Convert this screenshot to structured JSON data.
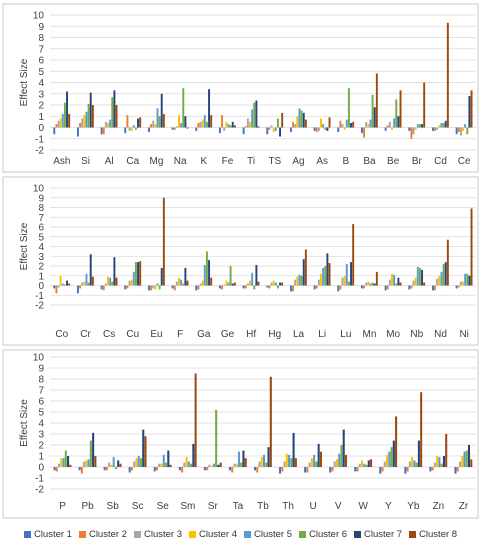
{
  "colors": [
    "#4472C4",
    "#ED7D31",
    "#A5A5A5",
    "#FFC000",
    "#5B9BD5",
    "#70AD47",
    "#264478",
    "#9E480E"
  ],
  "series_names": [
    "Cluster 1",
    "Cluster 2",
    "Cluster 3",
    "Cluster 4",
    "Cluster 5",
    "Cluster 6",
    "Cluster 7",
    "Cluster 8"
  ],
  "chart_data": [
    {
      "type": "bar",
      "ylabel": "Effect Size",
      "ylim": [
        -2,
        10
      ],
      "yticks": [
        -2,
        -1,
        0,
        1,
        2,
        3,
        4,
        5,
        6,
        7,
        8,
        9,
        10
      ],
      "grid": true,
      "legend": "bottom",
      "categories": [
        "Ash",
        "Si",
        "Al",
        "Ca",
        "Mg",
        "Na",
        "K",
        "Fe",
        "Ti",
        "TS",
        "Ag",
        "As",
        "B",
        "Ba",
        "Be",
        "Br",
        "Cd",
        "Ce"
      ],
      "series": [
        {
          "name": "Cluster 1",
          "values": [
            -0.6,
            -0.8,
            -0.6,
            -0.5,
            -0.4,
            -0.2,
            -0.3,
            -0.5,
            -0.6,
            -0.6,
            -0.4,
            -0.3,
            -0.4,
            -0.5,
            -0.3,
            -0.3,
            -0.3,
            -0.6
          ]
        },
        {
          "name": "Cluster 2",
          "values": [
            0.3,
            0.4,
            -0.6,
            1.1,
            0.3,
            -0.2,
            0.4,
            1.1,
            0.1,
            -0.2,
            0.5,
            -0.4,
            0.6,
            -0.9,
            0.2,
            -1.0,
            -0.3,
            -0.4
          ]
        },
        {
          "name": "Cluster 3",
          "values": [
            0.6,
            0.8,
            0.5,
            -0.3,
            0.6,
            0.1,
            0.5,
            -0.3,
            0.8,
            0.2,
            0.3,
            -0.3,
            0.3,
            0.5,
            0.5,
            -0.6,
            -0.2,
            -0.7
          ]
        },
        {
          "name": "Cluster 4",
          "values": [
            0.8,
            1.1,
            0.4,
            -0.3,
            0.3,
            1.1,
            0.7,
            0.5,
            0.5,
            -0.4,
            1.0,
            0.8,
            -0.2,
            0.3,
            -0.2,
            -0.2,
            0.2,
            -0.3
          ]
        },
        {
          "name": "Cluster 5",
          "values": [
            1.2,
            1.4,
            0.7,
            0.2,
            1.7,
            0.4,
            1.1,
            0.3,
            1.6,
            -0.3,
            1.7,
            0.3,
            0.7,
            0.7,
            0.8,
            0.3,
            0.4,
            0.3
          ]
        },
        {
          "name": "Cluster 6",
          "values": [
            2.2,
            2.1,
            2.7,
            -0.2,
            1.0,
            3.5,
            0.5,
            0.2,
            2.2,
            0.8,
            1.5,
            -0.2,
            3.5,
            2.9,
            2.5,
            0.3,
            0.4,
            -0.6
          ]
        },
        {
          "name": "Cluster 7",
          "values": [
            3.2,
            3.1,
            3.3,
            0.8,
            3.0,
            1.0,
            3.4,
            0.5,
            2.4,
            -0.8,
            1.3,
            -0.3,
            0.4,
            1.8,
            1.0,
            0.3,
            0.6,
            2.8
          ]
        },
        {
          "name": "Cluster 8",
          "values": [
            1.2,
            2.0,
            2.0,
            0.9,
            1.2,
            -0.1,
            1.1,
            0.2,
            0.1,
            1.3,
            0.7,
            0.9,
            0.5,
            4.8,
            3.3,
            4.0,
            9.3,
            3.3
          ]
        }
      ]
    },
    {
      "type": "bar",
      "ylabel": "Effect Size",
      "ylim": [
        -2,
        10
      ],
      "yticks": [
        -2,
        -1,
        0,
        1,
        2,
        3,
        4,
        5,
        6,
        7,
        8,
        9,
        10
      ],
      "grid": true,
      "legend": "bottom",
      "categories": [
        "Co",
        "Cr",
        "Cs",
        "Cu",
        "Eu",
        "F",
        "Ga",
        "Ge",
        "Hf",
        "Hg",
        "La",
        "Li",
        "Lu",
        "Mn",
        "Mo",
        "Nb",
        "Nd",
        "Ni"
      ],
      "series": [
        {
          "name": "Cluster 1",
          "values": [
            -0.3,
            -0.8,
            -0.4,
            -0.4,
            -0.5,
            -0.3,
            -0.5,
            -0.3,
            -0.3,
            -0.2,
            -0.6,
            -0.4,
            -0.6,
            -0.3,
            -0.5,
            -0.4,
            -0.5,
            -0.3
          ]
        },
        {
          "name": "Cluster 2",
          "values": [
            -0.8,
            -0.3,
            -0.5,
            -0.3,
            -0.5,
            -0.5,
            -0.4,
            -0.4,
            -0.3,
            -0.3,
            -0.6,
            -0.3,
            -0.4,
            -0.3,
            -0.4,
            -0.3,
            -0.5,
            -0.2
          ]
        },
        {
          "name": "Cluster 3",
          "values": [
            -0.2,
            0.3,
            0.2,
            0.5,
            -0.3,
            0.4,
            0.2,
            0.1,
            0.2,
            0.3,
            0.6,
            0.6,
            0.8,
            0.3,
            0.6,
            0.5,
            0.7,
            0.4
          ]
        },
        {
          "name": "Cluster 4",
          "values": [
            1.0,
            0.4,
            0.9,
            0.6,
            -0.4,
            0.8,
            0.5,
            0.5,
            0.5,
            0.5,
            0.9,
            1.2,
            1.0,
            0.4,
            1.2,
            0.8,
            1.0,
            0.4
          ]
        },
        {
          "name": "Cluster 5",
          "values": [
            0.2,
            1.2,
            0.8,
            1.4,
            0.2,
            0.6,
            2.1,
            0.3,
            1.3,
            0.3,
            1.1,
            1.8,
            2.2,
            0.2,
            1.1,
            1.9,
            1.4,
            1.2
          ]
        },
        {
          "name": "Cluster 6",
          "values": [
            0.1,
            0.3,
            0.4,
            2.4,
            -0.4,
            0.2,
            3.5,
            2.0,
            -0.4,
            -0.3,
            1.0,
            2.0,
            0.4,
            0.3,
            0.2,
            1.8,
            2.2,
            1.2
          ]
        },
        {
          "name": "Cluster 7",
          "values": [
            0.5,
            3.2,
            2.9,
            2.4,
            1.8,
            1.8,
            2.6,
            0.2,
            2.1,
            0.3,
            2.7,
            3.3,
            2.4,
            0.2,
            0.8,
            1.6,
            2.4,
            1.0
          ]
        },
        {
          "name": "Cluster 8",
          "values": [
            0.2,
            0.9,
            0.8,
            2.5,
            9.0,
            0.5,
            0.8,
            0.3,
            0.4,
            0.3,
            3.7,
            2.3,
            6.3,
            1.4,
            0.3,
            0.3,
            4.7,
            7.9
          ]
        }
      ]
    },
    {
      "type": "bar",
      "ylabel": "Effect Size",
      "ylim": [
        -2,
        10
      ],
      "yticks": [
        -2,
        -1,
        0,
        1,
        2,
        3,
        4,
        5,
        6,
        7,
        8,
        9,
        10
      ],
      "grid": true,
      "legend": "bottom",
      "categories": [
        "P",
        "Pb",
        "Sb",
        "Sc",
        "Se",
        "Sm",
        "Sr",
        "Ta",
        "Tb",
        "Th",
        "U",
        "V",
        "W",
        "Y",
        "Yb",
        "Zn",
        "Zr"
      ],
      "series": [
        {
          "name": "Cluster 1",
          "values": [
            -0.3,
            -0.3,
            -0.3,
            -0.5,
            -0.4,
            -0.3,
            -0.3,
            -0.3,
            -0.3,
            -0.6,
            -0.5,
            -0.5,
            -0.4,
            -0.6,
            -0.6,
            -0.4,
            -0.6
          ]
        },
        {
          "name": "Cluster 2",
          "values": [
            -0.4,
            -0.6,
            -0.3,
            -0.3,
            -0.3,
            -0.5,
            -0.3,
            -0.5,
            -0.5,
            -0.4,
            -0.5,
            -0.4,
            -0.4,
            -0.4,
            -0.4,
            -0.3,
            -0.4
          ]
        },
        {
          "name": "Cluster 3",
          "values": [
            0.3,
            0.5,
            0.4,
            0.5,
            0.3,
            0.4,
            0.2,
            0.3,
            0.5,
            0.5,
            0.4,
            0.5,
            0.3,
            0.5,
            0.5,
            0.4,
            0.5
          ]
        },
        {
          "name": "Cluster 4",
          "values": [
            0.8,
            0.6,
            0.2,
            0.8,
            0.3,
            0.9,
            0.1,
            0.3,
            0.9,
            1.2,
            0.8,
            0.7,
            0.6,
            1.1,
            0.9,
            1.0,
            1.0
          ]
        },
        {
          "name": "Cluster 5",
          "values": [
            0.8,
            0.7,
            0.9,
            1.0,
            1.1,
            0.5,
            0.3,
            1.4,
            1.1,
            1.1,
            1.1,
            1.2,
            0.3,
            1.4,
            0.6,
            0.9,
            1.4
          ]
        },
        {
          "name": "Cluster 6",
          "values": [
            1.5,
            2.4,
            -0.2,
            0.8,
            0.4,
            0.3,
            5.2,
            0.4,
            0.4,
            0.8,
            0.5,
            2.0,
            0.2,
            1.8,
            0.4,
            0.3,
            1.5
          ]
        },
        {
          "name": "Cluster 7",
          "values": [
            1.0,
            3.1,
            0.6,
            3.4,
            1.5,
            2.1,
            0.2,
            1.5,
            1.8,
            3.1,
            2.1,
            3.4,
            0.6,
            2.4,
            2.4,
            1.0,
            2.0
          ]
        },
        {
          "name": "Cluster 8",
          "values": [
            0.2,
            1.0,
            0.3,
            2.8,
            0.2,
            8.5,
            0.4,
            0.8,
            8.2,
            0.8,
            1.4,
            1.1,
            0.7,
            4.6,
            6.8,
            3.0,
            0.7
          ]
        }
      ]
    }
  ]
}
